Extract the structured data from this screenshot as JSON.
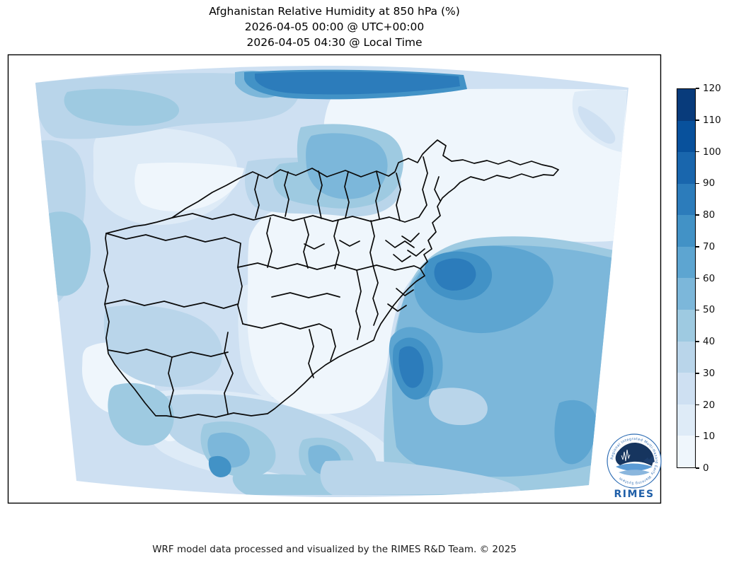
{
  "title": {
    "line1": "Afghanistan Relative Humidity at 850 hPa (%)",
    "line2": "2026-04-05 00:00 @ UTC+00:00",
    "line3": "2026-04-05 04:30 @ Local Time"
  },
  "footer": {
    "credit": "WRF model data processed and visualized by the RIMES R&D Team. © 2025"
  },
  "logo": {
    "name": "RIMES",
    "ring_text": "Regional Integrated Multi-Hazard Early Warning System"
  },
  "chart_data": {
    "type": "heatmap",
    "title": "Afghanistan Relative Humidity at 850 hPa (%)",
    "valid_time_utc": "2026-04-05 00:00 @ UTC+00:00",
    "valid_time_local": "2026-04-05 04:30 @ Local Time",
    "variable": "Relative Humidity at 850 hPa",
    "units": "%",
    "model": "WRF",
    "overlay": "Afghanistan province boundaries (black)",
    "colorbar": {
      "min": 0,
      "max": 120,
      "step": 10,
      "ticks": [
        0,
        10,
        20,
        30,
        40,
        50,
        60,
        70,
        80,
        90,
        100,
        110,
        120
      ],
      "palette": [
        "#eff6fc",
        "#deebf7",
        "#cee0f2",
        "#b9d5ea",
        "#9ecae1",
        "#7cb7da",
        "#5da5d1",
        "#4292c6",
        "#2c7cbb",
        "#1966ad",
        "#08519c",
        "#083b7b"
      ]
    },
    "regions": [
      {
        "name": "northwest-plains",
        "rh_percent": "20-40"
      },
      {
        "name": "north-domain-edge-streak",
        "rh_percent": "70-90"
      },
      {
        "name": "north-central-band",
        "rh_percent": "40-60"
      },
      {
        "name": "central-highlands",
        "rh_percent": "0-10"
      },
      {
        "name": "northeast-and-wakhan",
        "rh_percent": "0-20"
      },
      {
        "name": "upper-right-corner-patch",
        "rh_percent": "10-30"
      },
      {
        "name": "southeast-lowlands",
        "rh_percent": "50-70"
      },
      {
        "name": "southeast-wet-cores",
        "rh_percent": "70-90"
      },
      {
        "name": "southwest-desert",
        "rh_percent": "10-40"
      },
      {
        "name": "southern-domain-edge-arcs",
        "rh_percent": "40-80"
      },
      {
        "name": "west-edge-herat-border",
        "rh_percent": "40-60"
      }
    ]
  }
}
